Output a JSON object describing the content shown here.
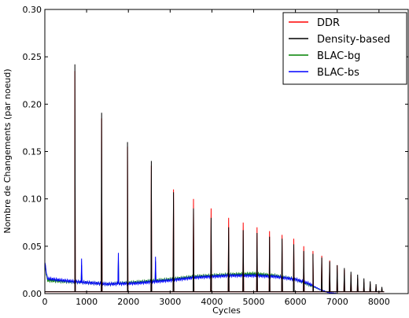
{
  "chart_data": {
    "type": "line",
    "title": "",
    "xlabel": "Cycles",
    "ylabel": "Nombre de Changements (par noeud)",
    "xlim": [
      0,
      8700
    ],
    "ylim": [
      0,
      0.3
    ],
    "x_ticks": [
      0,
      1000,
      2000,
      3000,
      4000,
      5000,
      6000,
      7000,
      8000
    ],
    "x_tick_labels": [
      "0",
      "1000",
      "2000",
      "3000",
      "4000",
      "5000",
      "6000",
      "7000",
      "8000"
    ],
    "y_ticks": [
      0,
      0.05,
      0.1,
      0.15,
      0.2,
      0.25,
      0.3
    ],
    "y_tick_labels": [
      "0.00",
      "0.05",
      "0.10",
      "0.15",
      "0.20",
      "0.25",
      "0.30"
    ],
    "grid": false,
    "legend_position": "top-right",
    "series": [
      {
        "name": "DDR",
        "color": "#ff0000",
        "baseline": 0.002,
        "peaks": [
          [
            720,
            0.235
          ],
          [
            1360,
            0.185
          ],
          [
            1980,
            0.155
          ],
          [
            2550,
            0.135
          ],
          [
            3080,
            0.11
          ],
          [
            3560,
            0.1
          ],
          [
            3980,
            0.09
          ],
          [
            4400,
            0.08
          ],
          [
            4750,
            0.075
          ],
          [
            5080,
            0.07
          ],
          [
            5380,
            0.066
          ],
          [
            5680,
            0.062
          ],
          [
            5960,
            0.058
          ],
          [
            6200,
            0.05
          ],
          [
            6420,
            0.045
          ],
          [
            6630,
            0.04
          ],
          [
            6820,
            0.035
          ],
          [
            7000,
            0.03
          ],
          [
            7170,
            0.025
          ],
          [
            7330,
            0.02
          ],
          [
            7490,
            0.016
          ],
          [
            7640,
            0.012
          ],
          [
            7790,
            0.01
          ],
          [
            7930,
            0.008
          ],
          [
            8070,
            0.005
          ]
        ]
      },
      {
        "name": "Density-based",
        "color": "#000000",
        "baseline": 0.002,
        "peaks": [
          [
            720,
            0.242
          ],
          [
            1360,
            0.191
          ],
          [
            1980,
            0.16
          ],
          [
            2550,
            0.14
          ],
          [
            3080,
            0.107
          ],
          [
            3560,
            0.09
          ],
          [
            3980,
            0.08
          ],
          [
            4400,
            0.07
          ],
          [
            4750,
            0.067
          ],
          [
            5080,
            0.064
          ],
          [
            5380,
            0.06
          ],
          [
            5680,
            0.058
          ],
          [
            5960,
            0.052
          ],
          [
            6200,
            0.045
          ],
          [
            6420,
            0.042
          ],
          [
            6630,
            0.038
          ],
          [
            6820,
            0.034
          ],
          [
            7000,
            0.03
          ],
          [
            7170,
            0.027
          ],
          [
            7330,
            0.023
          ],
          [
            7490,
            0.02
          ],
          [
            7640,
            0.016
          ],
          [
            7790,
            0.013
          ],
          [
            7930,
            0.01
          ],
          [
            8070,
            0.007
          ]
        ]
      },
      {
        "name": "BLAC-bg",
        "color": "#008000",
        "baseline_curve": [
          [
            0,
            0.032
          ],
          [
            60,
            0.014
          ],
          [
            400,
            0.013
          ],
          [
            900,
            0.012
          ],
          [
            1500,
            0.01
          ],
          [
            2200,
            0.012
          ],
          [
            3000,
            0.015
          ],
          [
            3600,
            0.018
          ],
          [
            4400,
            0.02
          ],
          [
            5000,
            0.021
          ],
          [
            5500,
            0.019
          ],
          [
            6000,
            0.015
          ],
          [
            6300,
            0.01
          ],
          [
            6600,
            0.004
          ],
          [
            6800,
            0.001
          ],
          [
            7000,
            0.0
          ]
        ],
        "peaks": [
          [
            880,
            0.03
          ],
          [
            1760,
            0.036
          ],
          [
            2650,
            0.034
          ]
        ]
      },
      {
        "name": "BLAC-bs",
        "color": "#0000ff",
        "baseline_curve": [
          [
            0,
            0.033
          ],
          [
            60,
            0.016
          ],
          [
            400,
            0.014
          ],
          [
            900,
            0.012
          ],
          [
            1500,
            0.01
          ],
          [
            2200,
            0.011
          ],
          [
            3000,
            0.014
          ],
          [
            3600,
            0.017
          ],
          [
            4400,
            0.019
          ],
          [
            5000,
            0.019
          ],
          [
            5500,
            0.018
          ],
          [
            6000,
            0.015
          ],
          [
            6300,
            0.011
          ],
          [
            6600,
            0.004
          ],
          [
            6800,
            0.001
          ],
          [
            7000,
            0.0
          ]
        ],
        "peaks": [
          [
            880,
            0.037
          ],
          [
            1760,
            0.043
          ],
          [
            2650,
            0.039
          ]
        ]
      }
    ]
  }
}
